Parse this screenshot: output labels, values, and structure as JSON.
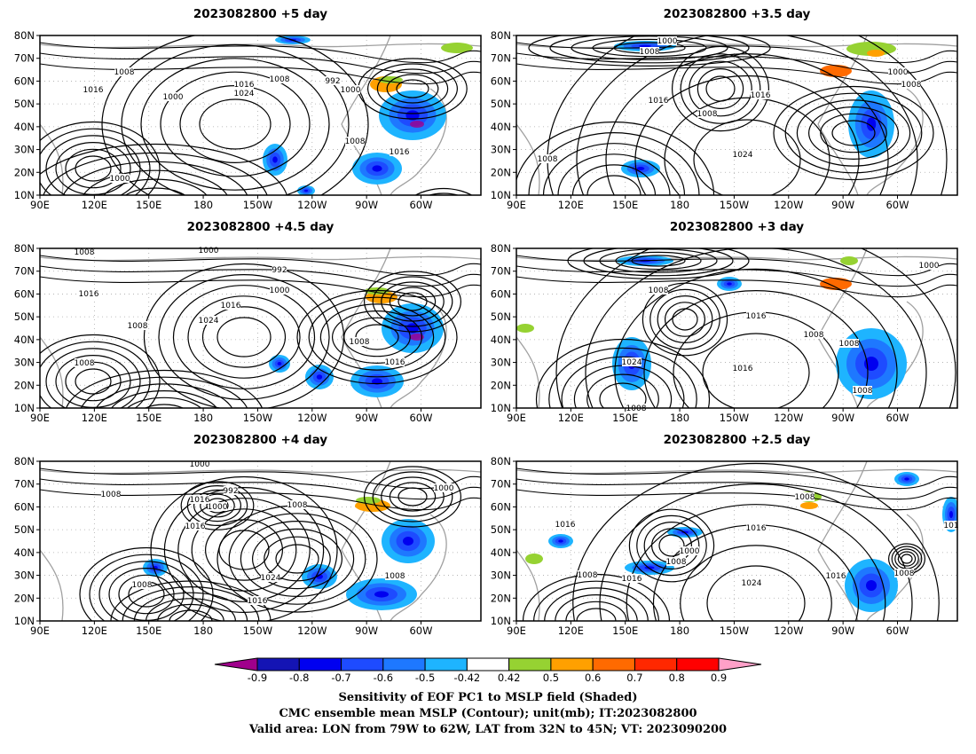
{
  "panels": [
    {
      "title": "2023082800  +5 day",
      "labels": [
        "1008",
        "1016",
        "1000",
        "1024",
        "1016",
        "1008",
        "992",
        "1000",
        "1008",
        "1016",
        "1000"
      ]
    },
    {
      "title": "2023082800  +3.5 day",
      "labels": [
        "1000",
        "1008",
        "1016",
        "1008",
        "1016",
        "1024",
        "1008",
        "1000",
        "1008"
      ]
    },
    {
      "title": "2023082800  +4.5 day",
      "labels": [
        "1008",
        "1000",
        "992",
        "1016",
        "1000",
        "1016",
        "1024",
        "1008",
        "1008",
        "1008",
        "1016"
      ]
    },
    {
      "title": "2023082800  +3 day",
      "labels": [
        "1000",
        "1008",
        "1016",
        "1008",
        "1008",
        "1016",
        "1024",
        "1008",
        "1008"
      ]
    },
    {
      "title": "2023082800  +4 day",
      "labels": [
        "1000",
        "1008",
        "992",
        "1016",
        "1000",
        "1008",
        "1016",
        "1024",
        "1008",
        "1008",
        "1016",
        "1000"
      ]
    },
    {
      "title": "2023082800  +2.5 day",
      "labels": [
        "1008",
        "1016",
        "1016",
        "1000",
        "1008",
        "1008",
        "1016",
        "1024",
        "1016",
        "1008",
        "101"
      ]
    }
  ],
  "axes": {
    "lat_labels": [
      "80N",
      "70N",
      "60N",
      "50N",
      "40N",
      "30N",
      "20N",
      "10N"
    ],
    "lon_labels": [
      "90E",
      "120E",
      "150E",
      "180",
      "150W",
      "120W",
      "90W",
      "60W"
    ]
  },
  "colorbar": {
    "ticks": [
      "-0.9",
      "-0.8",
      "-0.7",
      "-0.6",
      "-0.5",
      "-0.42",
      "0.42",
      "0.5",
      "0.6",
      "0.7",
      "0.8",
      "0.9"
    ],
    "colors": [
      "#a0008c",
      "#1414b4",
      "#0000f0",
      "#1e4bff",
      "#1e78ff",
      "#1eb4ff",
      "#ffffff",
      "#96d232",
      "#ffa000",
      "#ff6a00",
      "#ff2800",
      "#ff0000",
      "#ffa0c8"
    ]
  },
  "caption": {
    "line1": "Sensitivity of EOF PC1 to MSLP field (Shaded)",
    "line2": "CMC ensemble mean MSLP (Contour); unit(mb); IT:2023082800",
    "line3": "Valid area: LON from 79W to 62W, LAT from 32N to 45N; VT: 2023090200"
  }
}
